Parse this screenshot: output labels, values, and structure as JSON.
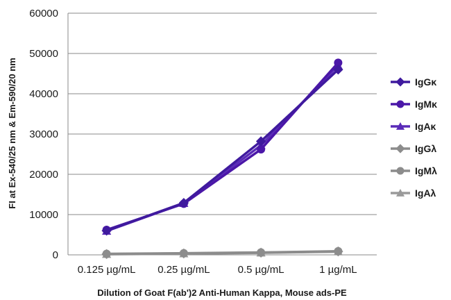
{
  "chart_data": {
    "type": "line",
    "title": "",
    "xlabel": "Dilution of Goat F(ab')2 Anti-Human Kappa, Mouse ads-PE",
    "ylabel": "FI at Ex-540/25 nm & Em-590/20 nm",
    "categories": [
      "0.125 µg/mL",
      "0.25 µg/mL",
      "0.5 µg/mL",
      "1 µg/mL"
    ],
    "ylim": [
      0,
      60000
    ],
    "yticks": [
      0,
      10000,
      20000,
      30000,
      40000,
      50000,
      60000
    ],
    "grid": "horizontal",
    "legend_position": "right",
    "series": [
      {
        "name": "IgGκ",
        "values": [
          6000,
          12900,
          28200,
          46000
        ],
        "color": "#3f1a9e",
        "marker": "diamond"
      },
      {
        "name": "IgMκ",
        "values": [
          6200,
          12700,
          26200,
          47700
        ],
        "color": "#4b17a8",
        "marker": "circle"
      },
      {
        "name": "IgAκ",
        "values": [
          5900,
          12800,
          27200,
          47000
        ],
        "color": "#5a2bb8",
        "marker": "triangle"
      },
      {
        "name": "IgGλ",
        "values": [
          200,
          350,
          550,
          850
        ],
        "color": "#8c8c8c",
        "marker": "diamond"
      },
      {
        "name": "IgMλ",
        "values": [
          250,
          400,
          600,
          900
        ],
        "color": "#8c8c8c",
        "marker": "circle"
      },
      {
        "name": "IgAλ",
        "values": [
          150,
          300,
          500,
          800
        ],
        "color": "#9a9a9a",
        "marker": "triangle"
      }
    ]
  }
}
